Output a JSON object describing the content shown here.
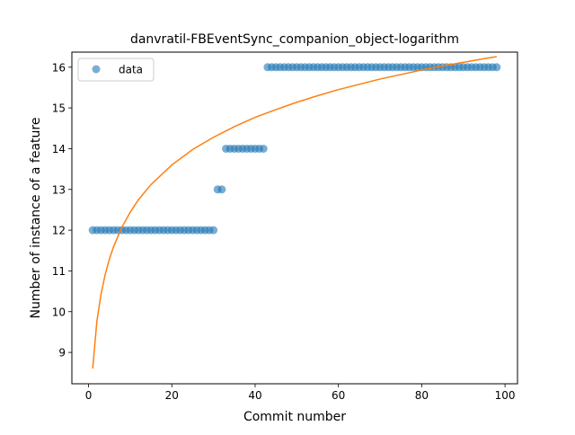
{
  "chart_data": {
    "type": "scatter",
    "title": "danvratil-FBEventSync_companion_object-logarithm",
    "xlabel": "Commit number",
    "ylabel": "Number of instance of a feature",
    "xlim": [
      -4,
      103
    ],
    "ylim": [
      8.23,
      16.37
    ],
    "xticks": [
      0,
      20,
      40,
      60,
      80,
      100
    ],
    "yticks": [
      9,
      10,
      11,
      12,
      13,
      14,
      15,
      16
    ],
    "grid": false,
    "legend": {
      "placement": "top-left",
      "entries": [
        "data"
      ]
    },
    "colors": {
      "data": "#1f77b4",
      "fit": "#ff7f0e"
    },
    "series": [
      {
        "name": "data",
        "kind": "scatter",
        "points": [
          [
            1,
            12
          ],
          [
            2,
            12
          ],
          [
            3,
            12
          ],
          [
            4,
            12
          ],
          [
            5,
            12
          ],
          [
            6,
            12
          ],
          [
            7,
            12
          ],
          [
            8,
            12
          ],
          [
            9,
            12
          ],
          [
            10,
            12
          ],
          [
            11,
            12
          ],
          [
            12,
            12
          ],
          [
            13,
            12
          ],
          [
            14,
            12
          ],
          [
            15,
            12
          ],
          [
            16,
            12
          ],
          [
            17,
            12
          ],
          [
            18,
            12
          ],
          [
            19,
            12
          ],
          [
            20,
            12
          ],
          [
            21,
            12
          ],
          [
            22,
            12
          ],
          [
            23,
            12
          ],
          [
            24,
            12
          ],
          [
            25,
            12
          ],
          [
            26,
            12
          ],
          [
            27,
            12
          ],
          [
            28,
            12
          ],
          [
            29,
            12
          ],
          [
            30,
            12
          ],
          [
            31,
            13
          ],
          [
            32,
            13
          ],
          [
            33,
            14
          ],
          [
            34,
            14
          ],
          [
            35,
            14
          ],
          [
            36,
            14
          ],
          [
            37,
            14
          ],
          [
            38,
            14
          ],
          [
            39,
            14
          ],
          [
            40,
            14
          ],
          [
            41,
            14
          ],
          [
            42,
            14
          ],
          [
            43,
            16
          ],
          [
            44,
            16
          ],
          [
            45,
            16
          ],
          [
            46,
            16
          ],
          [
            47,
            16
          ],
          [
            48,
            16
          ],
          [
            49,
            16
          ],
          [
            50,
            16
          ],
          [
            51,
            16
          ],
          [
            52,
            16
          ],
          [
            53,
            16
          ],
          [
            54,
            16
          ],
          [
            55,
            16
          ],
          [
            56,
            16
          ],
          [
            57,
            16
          ],
          [
            58,
            16
          ],
          [
            59,
            16
          ],
          [
            60,
            16
          ],
          [
            61,
            16
          ],
          [
            62,
            16
          ],
          [
            63,
            16
          ],
          [
            64,
            16
          ],
          [
            65,
            16
          ],
          [
            66,
            16
          ],
          [
            67,
            16
          ],
          [
            68,
            16
          ],
          [
            69,
            16
          ],
          [
            70,
            16
          ],
          [
            71,
            16
          ],
          [
            72,
            16
          ],
          [
            73,
            16
          ],
          [
            74,
            16
          ],
          [
            75,
            16
          ],
          [
            76,
            16
          ],
          [
            77,
            16
          ],
          [
            78,
            16
          ],
          [
            79,
            16
          ],
          [
            80,
            16
          ],
          [
            81,
            16
          ],
          [
            82,
            16
          ],
          [
            83,
            16
          ],
          [
            84,
            16
          ],
          [
            85,
            16
          ],
          [
            86,
            16
          ],
          [
            87,
            16
          ],
          [
            88,
            16
          ],
          [
            89,
            16
          ],
          [
            90,
            16
          ],
          [
            91,
            16
          ],
          [
            92,
            16
          ],
          [
            93,
            16
          ],
          [
            94,
            16
          ],
          [
            95,
            16
          ],
          [
            96,
            16
          ],
          [
            97,
            16
          ],
          [
            98,
            16
          ]
        ]
      },
      {
        "kind": "line",
        "points": [
          [
            1,
            8.6
          ],
          [
            2,
            9.76
          ],
          [
            3,
            10.43
          ],
          [
            4,
            10.91
          ],
          [
            5,
            11.29
          ],
          [
            6,
            11.59
          ],
          [
            8,
            12.07
          ],
          [
            10,
            12.44
          ],
          [
            12,
            12.75
          ],
          [
            15,
            13.12
          ],
          [
            20,
            13.6
          ],
          [
            25,
            13.98
          ],
          [
            30,
            14.28
          ],
          [
            35,
            14.54
          ],
          [
            40,
            14.77
          ],
          [
            45,
            14.96
          ],
          [
            50,
            15.14
          ],
          [
            55,
            15.3
          ],
          [
            60,
            15.45
          ],
          [
            65,
            15.58
          ],
          [
            70,
            15.71
          ],
          [
            75,
            15.82
          ],
          [
            80,
            15.93
          ],
          [
            85,
            16.03
          ],
          [
            90,
            16.12
          ],
          [
            95,
            16.21
          ],
          [
            98,
            16.26
          ]
        ]
      }
    ]
  }
}
